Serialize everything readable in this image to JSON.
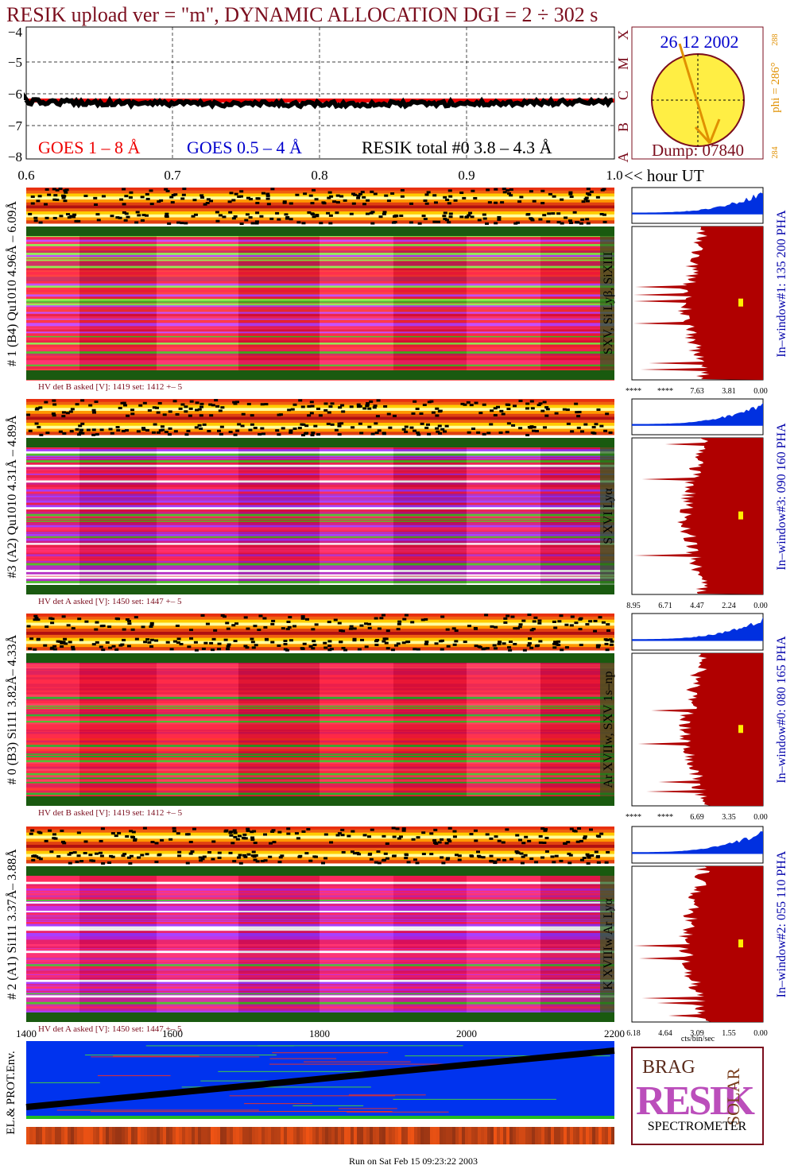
{
  "header": {
    "title": "RESIK upload ver = \"m\", DYNAMIC ALLOCATION  DGI =   2 ÷ 302 s"
  },
  "goes": {
    "yticks": [
      "−4",
      "−5",
      "−6",
      "−7",
      "−8"
    ],
    "xticks": [
      "0.6",
      "0.7",
      "0.8",
      "0.9",
      "1.0"
    ],
    "x_unit": "<< hour UT",
    "legend": [
      "GOES 1 – 8 Å",
      "GOES 0.5 – 4 Å",
      "RESIK total #0  3.8 – 4.3 Å"
    ]
  },
  "sun": {
    "date": "26 12 2002",
    "dump": "Dump: 07840",
    "phi": "phi = 286°",
    "phi_high": "288",
    "phi_low": "284",
    "classes": [
      "X",
      "M",
      "C",
      "B",
      "A"
    ]
  },
  "panels": [
    {
      "label": "# 1 (B4) Qu1010 4.96Å – 6.09Å",
      "lines": "SXV, Si Lyβ, SiXIII",
      "hv": "HV det B asked [V]:  1419 set:  1412 +–    5",
      "hist_ticks": [
        "****",
        "****",
        "7.63",
        "3.81",
        "0.00"
      ],
      "window": "In–window#1:  135 200 PHA"
    },
    {
      "label": "#3 (A2) Qu1010  4.31Å – 4.89Å",
      "lines": "S XVI Lyα",
      "hv": "HV det A asked [V]:  1450 set:  1447 +–    5",
      "hist_ticks": [
        "8.95",
        "6.71",
        "4.47",
        "2.24",
        "0.00"
      ],
      "window": "In–window#3:  090 160 PHA"
    },
    {
      "label": "# 0 (B3) Si111  3.82Å– 4.33Å",
      "lines": "Ar XVIIw,  SXV 1s–np",
      "hv": "HV det B asked [V]:  1419 set:  1412 +–    5",
      "hist_ticks": [
        "****",
        "****",
        "6.69",
        "3.35",
        "0.00"
      ],
      "window": "In–window#0:  080 165 PHA"
    },
    {
      "label": "# 2 (A1) Si111  3.37Å– 3.88Å",
      "lines": "K XVIIIw  Ar Lyα",
      "hv": "HV det A asked [V]:  1450 set:  1447 +–    5",
      "hist_ticks": [
        "6.18",
        "4.64",
        "3.09",
        "1.55",
        "0.00"
      ],
      "window": "In–window#2:  055 110 PHA"
    }
  ],
  "bottom_axis": {
    "xticks": [
      "1400",
      "1600",
      "1800",
      "2000",
      "2200"
    ],
    "unit": "cts/bin/sec"
  },
  "env": {
    "label": "EL.& PROT.Env."
  },
  "logo": {
    "brag": "BRAG",
    "resik": "RESIK",
    "solar": "SOLAR",
    "title": "SPECTROMETER"
  },
  "footer": "Run on Sat Feb 15 09:23:22 2003"
}
